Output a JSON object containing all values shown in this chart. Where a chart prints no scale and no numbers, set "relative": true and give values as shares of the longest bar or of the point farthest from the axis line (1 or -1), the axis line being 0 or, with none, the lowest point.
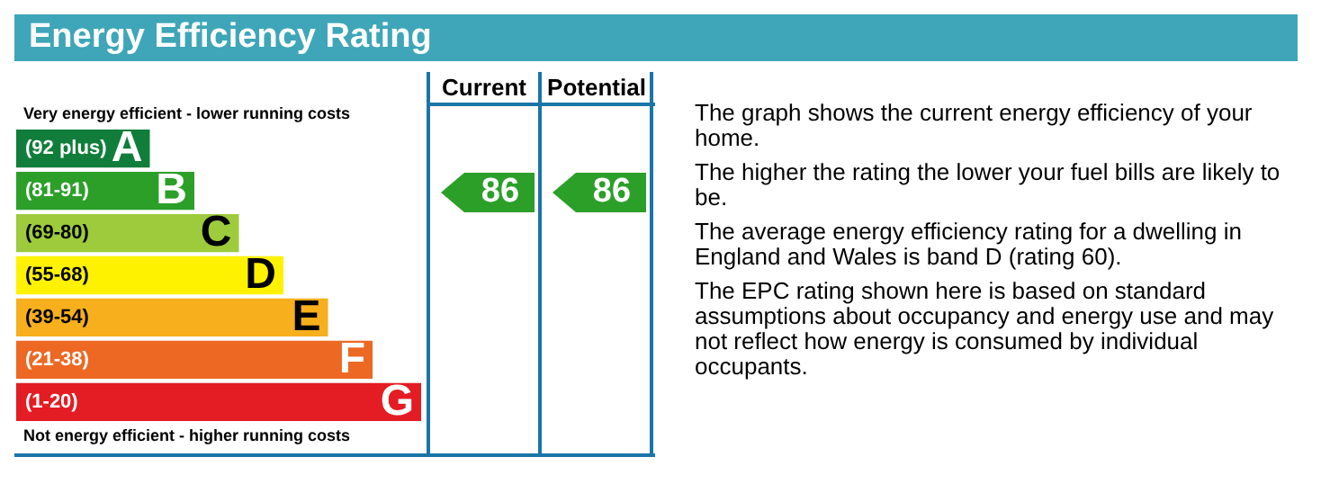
{
  "chart_data": {
    "type": "bar",
    "orientation": "horizontal",
    "relative": true,
    "title": "Energy Efficiency Rating",
    "categories": [
      "A",
      "B",
      "C",
      "D",
      "E",
      "F",
      "G"
    ],
    "values": [
      0.33,
      0.44,
      0.55,
      0.66,
      0.77,
      0.88,
      1
    ],
    "colors": [
      "#117d3a",
      "#2c9f29",
      "#9dcb3c",
      "#fff200",
      "#f7af1d",
      "#ed6823",
      "#e31d23"
    ],
    "annotations": [
      "Very energy efficient - lower running costs",
      "Not energy efficient - higher running costs",
      "(92 plus)",
      "(81-91)",
      "(69-80)",
      "(55-68)",
      "(39-54)",
      "(21-38)",
      "(1-20)",
      "Current",
      "Potential",
      "86",
      "86",
      "The graph shows the current energy efficiency of your home.",
      "The higher the rating the lower your fuel bills are likely to be.",
      "The average energy efficiency rating for a dwelling in England and Wales is band D (rating 60).",
      "The EPC rating shown here is based on standard assumptions about occupancy and energy use and may not reflect how energy is consumed by individual occupants."
    ]
  }
}
